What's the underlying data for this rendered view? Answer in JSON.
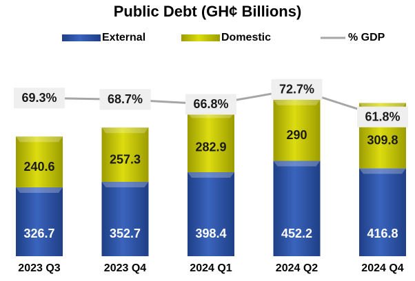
{
  "chart_data": {
    "type": "bar",
    "stacked": true,
    "title": "Public Debt (GH¢ Billions)",
    "categories": [
      "2023 Q3",
      "2023 Q4",
      "2024 Q1",
      "2024 Q2",
      "2024 Q4"
    ],
    "series": [
      {
        "name": "External",
        "color": "#2f55a8",
        "values": [
          326.7,
          352.7,
          398.4,
          452.2,
          416.8
        ]
      },
      {
        "name": "Domestic",
        "color": "#c9c900",
        "values": [
          240.6,
          257.3,
          282.9,
          290,
          309.8
        ]
      },
      {
        "name": "% GDP",
        "color": "#a6a6a6",
        "type": "line",
        "axis": "y2",
        "values": [
          69.3,
          68.7,
          66.8,
          72.7,
          61.8
        ],
        "value_labels": [
          "69.3%",
          "68.7%",
          "66.8%",
          "72.7%",
          "61.8%"
        ]
      }
    ],
    "ylim": [
      0,
      800
    ],
    "y2lim": [
      10,
      80
    ],
    "legend": "top"
  }
}
